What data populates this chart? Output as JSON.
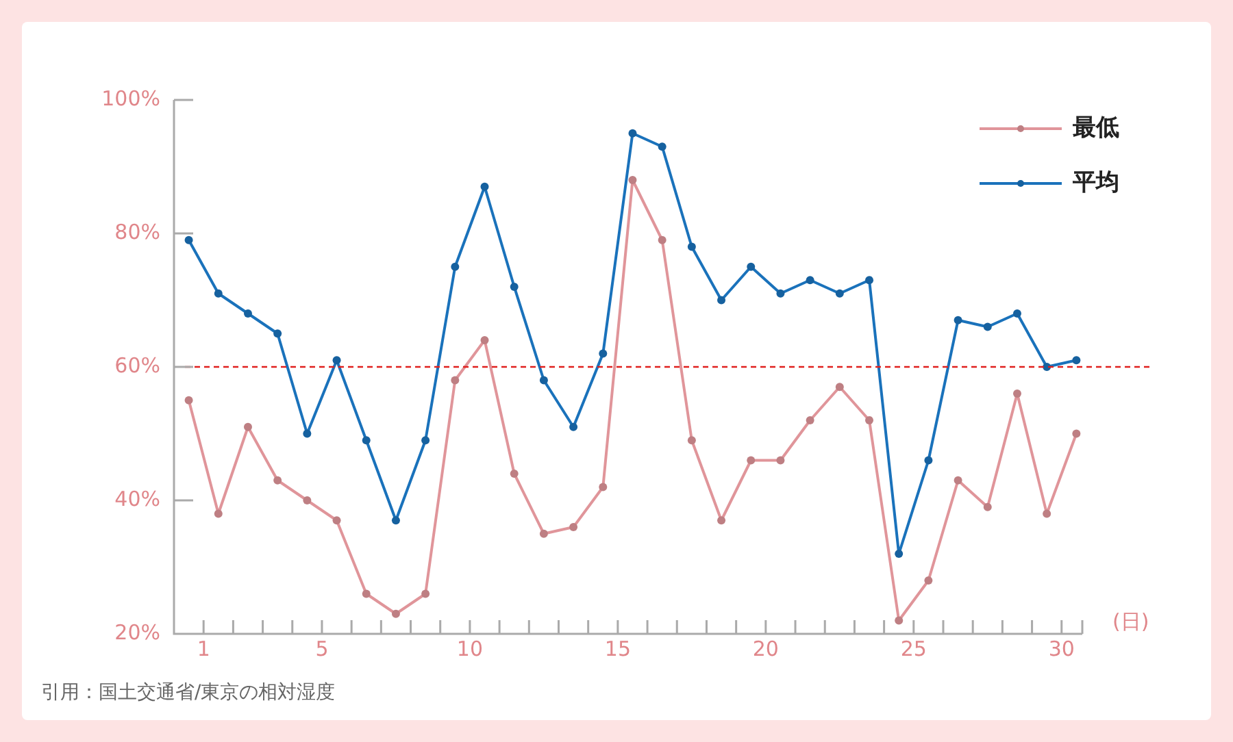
{
  "chart_data": {
    "type": "line",
    "xlabel": "(日)",
    "annotations": [
      "引用：国土交通省/東京の相対湿度"
    ],
    "x": [
      0.5,
      1.5,
      2.5,
      3.5,
      4.5,
      5.5,
      6.5,
      7.5,
      8.5,
      9.5,
      10.5,
      11.5,
      12.5,
      13.5,
      14.5,
      15.5,
      16.5,
      17.5,
      18.5,
      19.5,
      20.5,
      21.5,
      22.5,
      23.5,
      24.5,
      25.5,
      26.5,
      27.5,
      28.5,
      29.5,
      30.5
    ],
    "series": [
      {
        "name": "最低",
        "color": "#e0959a",
        "values": [
          55,
          38,
          51,
          43,
          40,
          37,
          26,
          23,
          26,
          58,
          64,
          44,
          35,
          36,
          42,
          88,
          79,
          49,
          37,
          46,
          46,
          52,
          57,
          52,
          22,
          28,
          43,
          39,
          56,
          38,
          50
        ]
      },
      {
        "name": "平均",
        "color": "#1a72bb",
        "values": [
          79,
          71,
          68,
          65,
          50,
          61,
          49,
          37,
          49,
          75,
          87,
          72,
          58,
          51,
          62,
          95,
          93,
          78,
          70,
          75,
          71,
          73,
          71,
          73,
          32,
          46,
          67,
          66,
          68,
          60,
          61
        ]
      }
    ],
    "xlim": [
      0,
      30.7
    ],
    "xticks": [
      {
        "value": 1,
        "label": "1"
      },
      {
        "value": 2,
        "label": null
      },
      {
        "value": 3,
        "label": null
      },
      {
        "value": 4,
        "label": null
      },
      5,
      {
        "value": 6,
        "label": null
      },
      {
        "value": 7,
        "label": null
      },
      {
        "value": 8,
        "label": null
      },
      {
        "value": 9,
        "label": null
      },
      10,
      {
        "value": 11,
        "label": null
      },
      {
        "value": 12,
        "label": null
      },
      {
        "value": 13,
        "label": null
      },
      {
        "value": 14,
        "label": null
      },
      15,
      {
        "value": 16,
        "label": null
      },
      {
        "value": 17,
        "label": null
      },
      {
        "value": 18,
        "label": null
      },
      {
        "value": 19,
        "label": null
      },
      20,
      {
        "value": 21,
        "label": null
      },
      {
        "value": 22,
        "label": null
      },
      {
        "value": 23,
        "label": null
      },
      {
        "value": 24,
        "label": null
      },
      25,
      {
        "value": 26,
        "label": null
      },
      {
        "value": 27,
        "label": null
      },
      {
        "value": 28,
        "label": null
      },
      {
        "value": 29,
        "label": null
      },
      30
    ],
    "ylim": [
      20,
      100
    ],
    "yticks": [
      {
        "value": 20,
        "label": "20%"
      },
      {
        "value": 40,
        "label": "40%"
      },
      {
        "value": 60,
        "label": "60%"
      },
      {
        "value": 80,
        "label": "80%"
      },
      {
        "value": 100,
        "label": "100%"
      }
    ],
    "ref_lines": [
      {
        "axis": "y",
        "value": 60,
        "color": "#e0201e",
        "line_style": "dashed"
      }
    ],
    "grid": false,
    "legend": "top right",
    "marker": "circle",
    "line_style": "solid"
  }
}
